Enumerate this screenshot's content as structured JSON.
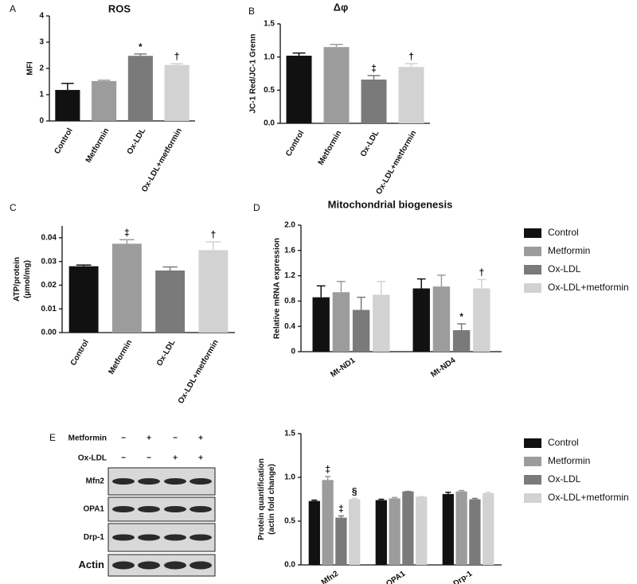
{
  "chart_data": [
    {
      "type": "bar",
      "panel": "A",
      "title": "ROS",
      "ylabel": "MFI",
      "categories": [
        "Control",
        "Metformin",
        "Ox-LDL",
        "Ox-LDL+metformin"
      ],
      "values": [
        1.18,
        1.52,
        2.48,
        2.13
      ],
      "errors": [
        0.25,
        0.03,
        0.07,
        0.05
      ],
      "annotations": [
        null,
        null,
        "*",
        "†"
      ],
      "colors": [
        "#111111",
        "#9c9c9c",
        "#7a7a7a",
        "#d2d2d2"
      ],
      "ylim": [
        0,
        4
      ],
      "yticks": [
        0,
        1,
        2,
        3,
        4
      ]
    },
    {
      "type": "bar",
      "panel": "B",
      "title": "Δφ",
      "ylabel": "JC-1 Red/JC-1 Grenn",
      "categories": [
        "Control",
        "Metformin",
        "Ox-LDL",
        "Ox-LDL+metformin"
      ],
      "values": [
        1.02,
        1.15,
        0.66,
        0.85
      ],
      "errors": [
        0.04,
        0.04,
        0.06,
        0.05
      ],
      "annotations": [
        null,
        null,
        "‡",
        "†"
      ],
      "colors": [
        "#111111",
        "#9c9c9c",
        "#7a7a7a",
        "#d2d2d2"
      ],
      "ylim": [
        0,
        1.5
      ],
      "yticks": [
        {
          "value": 0,
          "label": "0.0"
        },
        {
          "value": 0.5,
          "label": "0.5"
        },
        {
          "value": 1,
          "label": "1.0"
        },
        {
          "value": 1.5,
          "label": "1.5"
        }
      ]
    },
    {
      "type": "bar",
      "panel": "C",
      "ylabel": [
        "ATP/protein",
        "(µmol/mg)"
      ],
      "categories": [
        "Control",
        "Metformin",
        "Ox-LDL",
        "Ox-LDL+metformin"
      ],
      "values": [
        0.028,
        0.0375,
        0.0262,
        0.0348
      ],
      "errors": [
        0.0005,
        0.0017,
        0.0015,
        0.0035
      ],
      "annotations": [
        null,
        "‡",
        null,
        "†"
      ],
      "colors": [
        "#111111",
        "#9c9c9c",
        "#7a7a7a",
        "#d2d2d2"
      ],
      "ylim": [
        0,
        0.045
      ],
      "yticks": [
        {
          "value": 0,
          "label": "0.00"
        },
        {
          "value": 0.01,
          "label": "0.01"
        },
        {
          "value": 0.02,
          "label": "0.02"
        },
        {
          "value": 0.03,
          "label": "0.03"
        },
        {
          "value": 0.04,
          "label": "0.04"
        }
      ]
    },
    {
      "type": "bar",
      "panel": "D",
      "title": "Mitochondrial biogenesis",
      "ylabel": "Relative mRNA expression",
      "categories": [
        "Mt-ND1",
        "Mt-ND4"
      ],
      "series": [
        {
          "name": "Control",
          "color": "#111111",
          "values": [
            0.86,
            1.0
          ],
          "errors": [
            0.18,
            0.15
          ],
          "annotations": [
            null,
            null
          ]
        },
        {
          "name": "Metformin",
          "color": "#9c9c9c",
          "values": [
            0.94,
            1.03
          ],
          "errors": [
            0.17,
            0.18
          ],
          "annotations": [
            null,
            null
          ]
        },
        {
          "name": "Ox-LDL",
          "color": "#7a7a7a",
          "values": [
            0.66,
            0.34
          ],
          "errors": [
            0.2,
            0.1
          ],
          "annotations": [
            null,
            "*"
          ]
        },
        {
          "name": "Ox-LDL+metformin",
          "color": "#d2d2d2",
          "values": [
            0.9,
            1.0
          ],
          "errors": [
            0.21,
            0.14
          ],
          "annotations": [
            null,
            "†"
          ]
        }
      ],
      "ylim": [
        0,
        2
      ],
      "yticks": [
        0,
        0.4,
        0.8,
        1.2,
        1.6,
        {
          "value": 2,
          "label": "2.0"
        }
      ],
      "legend": "right"
    },
    {
      "type": "bar",
      "ylabel": [
        "Protein quantification",
        "(actin fold change)"
      ],
      "categories": [
        "Mfn2",
        "OPA1",
        "Drp-1"
      ],
      "series": [
        {
          "name": "Control",
          "color": "#111111",
          "values": [
            0.73,
            0.74,
            0.81
          ],
          "errors": [
            0.01,
            0.01,
            0.02
          ],
          "annotations": [
            "",
            "",
            ""
          ]
        },
        {
          "name": "Metformin",
          "color": "#9c9c9c",
          "values": [
            0.97,
            0.76,
            0.84
          ],
          "errors": [
            0.04,
            0.01,
            0.01
          ],
          "annotations": [
            "‡",
            null,
            null
          ]
        },
        {
          "name": "Ox-LDL",
          "color": "#7a7a7a",
          "values": [
            0.54,
            0.84,
            0.75
          ],
          "errors": [
            0.02,
            0,
            0.01
          ],
          "annotations": [
            "‡",
            null,
            null
          ]
        },
        {
          "name": "Ox-LDL+metformin",
          "color": "#d2d2d2",
          "values": [
            0.75,
            0.78,
            0.82
          ],
          "errors": [
            0.01,
            0,
            0.01
          ],
          "annotations": [
            "§",
            null,
            null
          ]
        }
      ],
      "ylim": [
        0,
        1.5
      ],
      "yticks": [
        {
          "value": 0,
          "label": "0.0"
        },
        {
          "value": 0.5,
          "label": "0.5"
        },
        {
          "value": 1,
          "label": "1.0"
        },
        {
          "value": 1.5,
          "label": "1.5"
        }
      ],
      "legend": "right"
    }
  ],
  "blot": {
    "panel": "E",
    "conditions": [
      {
        "name": "Metformin",
        "signs": [
          "−",
          "+",
          "−",
          "+"
        ]
      },
      {
        "name": "Ox-LDL",
        "signs": [
          "−",
          "−",
          "+",
          "+"
        ]
      }
    ],
    "bands": [
      "Mfn2",
      "OPA1",
      "Drp-1",
      "Actin"
    ]
  }
}
